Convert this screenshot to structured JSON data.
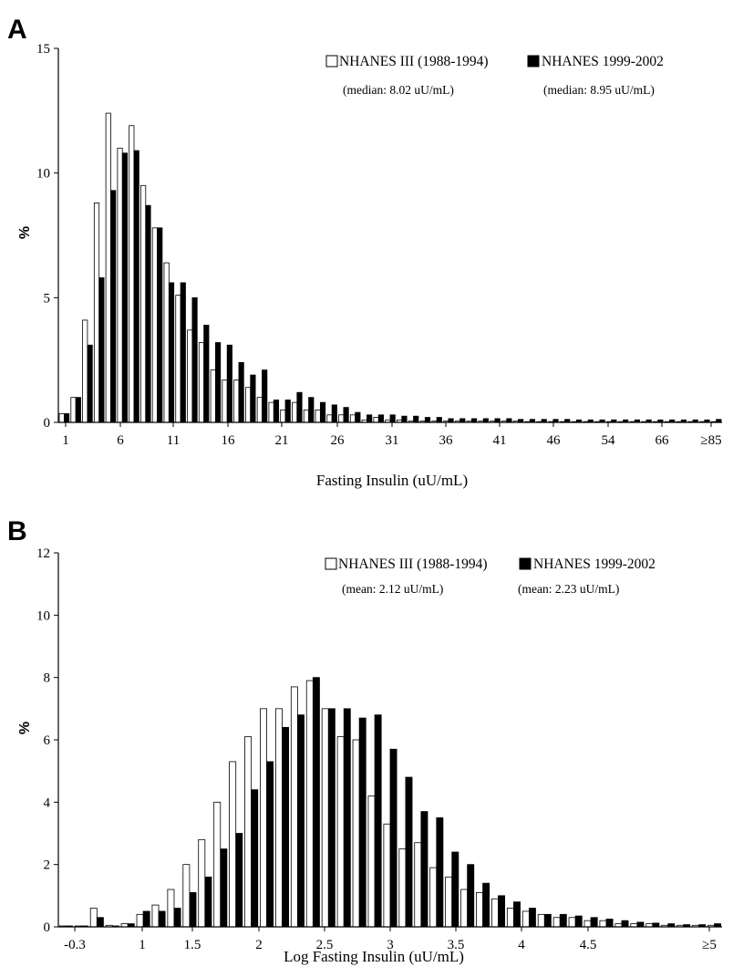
{
  "chart_data": [
    {
      "type": "bar",
      "panel": "A",
      "xlabel": "Fasting Insulin (uU/mL)",
      "ylabel": "%",
      "ylim": [
        0,
        15
      ],
      "yticks": [
        "0",
        "5",
        "10",
        "15"
      ],
      "xtick_labels": [
        "1",
        "6",
        "11",
        "16",
        "21",
        "26",
        "31",
        "36",
        "41",
        "46",
        "54",
        "66",
        "≥85"
      ],
      "grid": false,
      "legend_position": "top-right",
      "series": [
        {
          "name": "NHANES III (1988-1994)",
          "annotation": "(median: 8.02 uU/mL)",
          "color": "#ffffff",
          "values": [
            0.35,
            1.0,
            4.1,
            8.8,
            12.4,
            11.0,
            11.9,
            9.5,
            7.8,
            6.4,
            5.1,
            3.7,
            3.2,
            2.1,
            1.7,
            1.7,
            1.4,
            1.0,
            0.8,
            0.5,
            0.8,
            0.5,
            0.5,
            0.3,
            0.3,
            0.3,
            0.1,
            0.2,
            0.1,
            0.1,
            0.05,
            0.05,
            0.05,
            0.05,
            0.05,
            0.05,
            0.05,
            0.05,
            0.05,
            0.05,
            0.03,
            0.03,
            0.03,
            0.03,
            0.03,
            0.03,
            0.03,
            0.03,
            0.03,
            0.03,
            0.03,
            0.03,
            0.03,
            0.03,
            0.03,
            0.03,
            0.03
          ]
        },
        {
          "name": "NHANES 1999-2002",
          "annotation": "(median: 8.95 uU/mL)",
          "color": "#000000",
          "values": [
            0.35,
            1.0,
            3.1,
            5.8,
            9.3,
            10.8,
            10.9,
            8.7,
            7.8,
            5.6,
            5.6,
            5.0,
            3.9,
            3.2,
            3.1,
            2.4,
            1.9,
            2.1,
            0.9,
            0.9,
            1.2,
            1.0,
            0.8,
            0.7,
            0.6,
            0.4,
            0.3,
            0.3,
            0.3,
            0.25,
            0.25,
            0.2,
            0.2,
            0.15,
            0.15,
            0.15,
            0.15,
            0.15,
            0.15,
            0.12,
            0.12,
            0.12,
            0.12,
            0.12,
            0.1,
            0.1,
            0.1,
            0.1,
            0.1,
            0.1,
            0.1,
            0.1,
            0.1,
            0.1,
            0.1,
            0.1,
            0.12
          ]
        }
      ]
    },
    {
      "type": "bar",
      "panel": "B",
      "xlabel": "Log Fasting Insulin (uU/mL)",
      "ylabel": "%",
      "ylim": [
        0,
        12
      ],
      "yticks": [
        "0",
        "2",
        "4",
        "6",
        "8",
        "10",
        "12"
      ],
      "xtick_labels": [
        "-0.3",
        "1",
        "1.5",
        "2",
        "2.5",
        "3",
        "3.5",
        "4",
        "4.5",
        "≥5"
      ],
      "grid": false,
      "legend_position": "top-right",
      "series": [
        {
          "name": "NHANES III (1988-1994)",
          "annotation": "(mean: 2.12 uU/mL)",
          "color": "#ffffff",
          "values": [
            0.03,
            0.03,
            0.6,
            0.05,
            0.1,
            0.4,
            0.7,
            1.2,
            2.0,
            2.8,
            4.0,
            5.3,
            6.1,
            7.0,
            7.0,
            7.7,
            7.9,
            7.0,
            6.1,
            6.0,
            4.2,
            3.3,
            2.5,
            2.7,
            1.9,
            1.6,
            1.2,
            1.1,
            0.9,
            0.6,
            0.5,
            0.4,
            0.3,
            0.3,
            0.2,
            0.2,
            0.1,
            0.1,
            0.1,
            0.05,
            0.05,
            0.05,
            0.05
          ]
        },
        {
          "name": "NHANES 1999-2002",
          "annotation": "(mean: 2.23 uU/mL)",
          "color": "#000000",
          "values": [
            0.03,
            0.03,
            0.3,
            0.03,
            0.1,
            0.5,
            0.5,
            0.6,
            1.1,
            1.6,
            2.5,
            3.0,
            4.4,
            5.3,
            6.4,
            6.8,
            8.0,
            7.0,
            7.0,
            6.7,
            6.8,
            5.7,
            4.8,
            3.7,
            3.5,
            2.4,
            2.0,
            1.4,
            1.0,
            0.8,
            0.6,
            0.4,
            0.4,
            0.35,
            0.3,
            0.25,
            0.2,
            0.15,
            0.12,
            0.1,
            0.07,
            0.07,
            0.1
          ]
        }
      ]
    }
  ],
  "panels": {
    "a": {
      "letter": "A"
    },
    "b": {
      "letter": "B"
    }
  }
}
